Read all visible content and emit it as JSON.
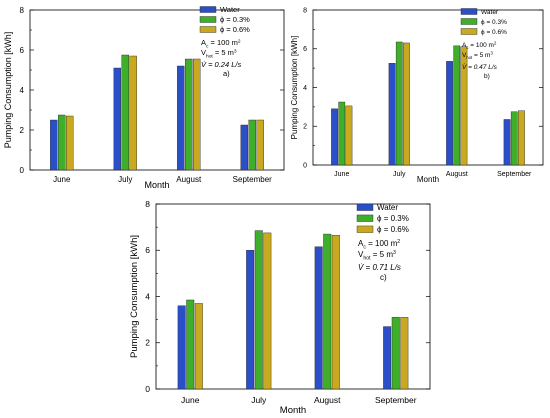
{
  "colors": {
    "water": "#2b4fc9",
    "phi03": "#3fae2a",
    "phi06": "#c9a91f",
    "frame": "#000000"
  },
  "chart_data": [
    {
      "type": "bar",
      "categories": [
        "June",
        "July",
        "August",
        "September"
      ],
      "xlabel": "Month",
      "ylabel": "Pumping Consumption [kWh]",
      "ylim": [
        0,
        8
      ],
      "yticks": [
        "0",
        "2",
        "4",
        "6",
        "8"
      ],
      "series": [
        {
          "name": "Water",
          "values": [
            2.5,
            5.1,
            5.2,
            2.25
          ]
        },
        {
          "name": "ϕ = 0.3%",
          "values": [
            2.75,
            5.75,
            5.55,
            2.5
          ]
        },
        {
          "name": "ϕ = 0.6%",
          "values": [
            2.7,
            5.7,
            5.55,
            2.5
          ]
        }
      ],
      "annotations": [
        "A",
        "= 100 m",
        "V",
        "= 5 m",
        "V̇ = 0.24 L/s",
        "a)"
      ]
    },
    {
      "type": "bar",
      "categories": [
        "June",
        "July",
        "August",
        "September"
      ],
      "xlabel": "Month",
      "ylabel": "Pumping Consumption [kWh]",
      "ylim": [
        0,
        8
      ],
      "yticks": [
        "0",
        "2",
        "4",
        "6",
        "8"
      ],
      "series": [
        {
          "name": "Water",
          "values": [
            2.9,
            5.25,
            5.35,
            2.35
          ]
        },
        {
          "name": "ϕ = 0.3%",
          "values": [
            3.25,
            6.35,
            6.15,
            2.75
          ]
        },
        {
          "name": "ϕ = 0.6%",
          "values": [
            3.05,
            6.3,
            6.1,
            2.8
          ]
        }
      ],
      "annotations": [
        "A",
        "= 100 m",
        "V",
        "= 5 m",
        "V̇ = 0.47 L/s",
        "b)"
      ]
    },
    {
      "type": "bar",
      "categories": [
        "June",
        "July",
        "August",
        "September"
      ],
      "xlabel": "Month",
      "ylabel": "Pumping Consumption [kWh]",
      "ylim": [
        0,
        8
      ],
      "yticks": [
        "0",
        "2",
        "4",
        "6",
        "8"
      ],
      "series": [
        {
          "name": "Water",
          "values": [
            3.6,
            6.0,
            6.15,
            2.7
          ]
        },
        {
          "name": "ϕ = 0.3%",
          "values": [
            3.85,
            6.85,
            6.7,
            3.1
          ]
        },
        {
          "name": "ϕ = 0.6%",
          "values": [
            3.7,
            6.75,
            6.65,
            3.1
          ]
        }
      ],
      "annotations": [
        "A",
        "= 100 m",
        "V",
        "= 5 m",
        "V̇ = 0.71 L/s",
        "c)"
      ]
    }
  ]
}
